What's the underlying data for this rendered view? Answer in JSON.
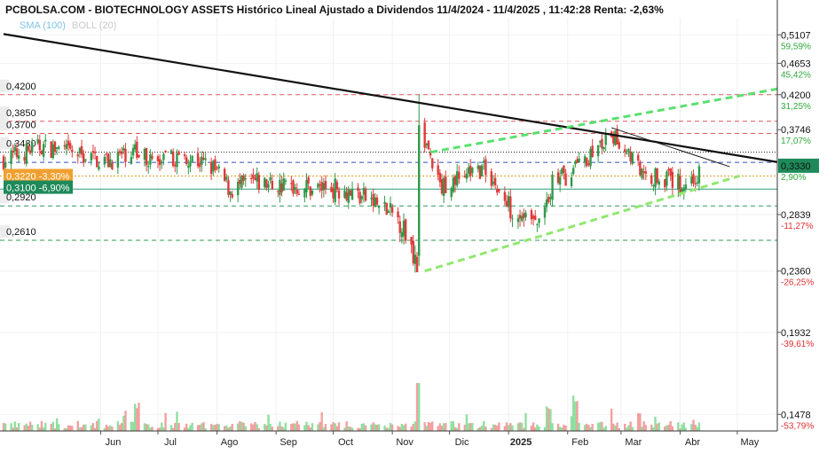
{
  "chart_data": {
    "type": "candlestick",
    "title": "PCBOLSA.COM - BIOTECHNOLOGY ASSETS Histórico Lineal Ajustado a Dividendos 11/4/2024 - 11/4/2025 , 11:42:28 Renta: -2,63%",
    "indicators": [
      "SMA (100)",
      "BOLL (20)"
    ],
    "y_scale": "log",
    "ylim": [
      0.14,
      0.54
    ],
    "grid": true,
    "right_axis": [
      {
        "price": "0,5107",
        "pct": "59,59%",
        "color": "#2eaa3a"
      },
      {
        "price": "0,4653",
        "pct": "45,42%",
        "color": "#2eaa3a"
      },
      {
        "price": "0,4200",
        "pct": "31,25%",
        "color": "#2eaa3a"
      },
      {
        "price": "0,3746",
        "pct": "17,07%",
        "color": "#2eaa3a"
      },
      {
        "price": "0,3330",
        "pct": "2,90%",
        "color": "#2eaa3a",
        "current": true
      },
      {
        "price": "0,2839",
        "pct": "-11,27%",
        "color": "#e03030"
      },
      {
        "price": "0,2360",
        "pct": "-26,25%",
        "color": "#e03030"
      },
      {
        "price": "0,1932",
        "pct": "-39,61%",
        "color": "#e03030"
      },
      {
        "price": "0,1478",
        "pct": "-53,79%",
        "color": "#e03030"
      }
    ],
    "hlines": [
      {
        "label": "0,4200",
        "value": 0.42,
        "color": "#e05a5a",
        "style": "dash"
      },
      {
        "label": "0,3850",
        "value": 0.385,
        "color": "#e05a5a",
        "style": "dash"
      },
      {
        "label": "0,3700",
        "value": 0.37,
        "color": "#e05a5a",
        "style": "dash"
      },
      {
        "label": "0,3480",
        "value": 0.348,
        "color": "#222222",
        "style": "dot"
      },
      {
        "label": "",
        "value": 0.3366,
        "color": "#3050c0",
        "style": "dash"
      },
      {
        "label": "0,2920",
        "value": 0.292,
        "color": "#2e9a5a",
        "style": "dash"
      },
      {
        "label": "0,2610",
        "value": 0.261,
        "color": "#2e9a5a",
        "style": "dash"
      }
    ],
    "badges": [
      {
        "label": "0,3220 -3,30%",
        "value": 0.322,
        "color": "#f0a030"
      },
      {
        "label": "0,3100 -6,90%",
        "value": 0.31,
        "color": "#1e8a5a"
      }
    ],
    "months": [
      "Jun",
      "Jul",
      "Ago",
      "Sep",
      "Oct",
      "Nov",
      "Dic",
      "2025",
      "Feb",
      "Mar",
      "Abr",
      "May"
    ],
    "trend_lines": [
      {
        "name": "",
        "color": "#111111",
        "style": "solid",
        "p1": [
          "2024-04-11",
          0.512
        ],
        "p2": [
          "2025-05-22",
          0.337
        ]
      },
      {
        "name": "",
        "color": "#111111",
        "style": "thin",
        "p1": [
          "2025-02-24",
          0.377
        ],
        "p2": [
          "2025-04-27",
          0.332
        ]
      },
      {
        "name": "",
        "color": "#5be070",
        "style": "dash",
        "p1": [
          "2024-11-21",
          0.348
        ],
        "p2": [
          "2025-05-22",
          0.428
        ]
      },
      {
        "name": "",
        "color": "#90e870",
        "style": "dash",
        "p1": [
          "2024-11-18",
          0.236
        ],
        "p2": [
          "2025-05-02",
          0.322
        ]
      }
    ],
    "close_anchors": [
      [
        "2024-04-11",
        0.34
      ],
      [
        "2024-05-01",
        0.355
      ],
      [
        "2024-05-20",
        0.345
      ],
      [
        "2024-06-05",
        0.338
      ],
      [
        "2024-06-18",
        0.35
      ],
      [
        "2024-07-01",
        0.335
      ],
      [
        "2024-07-15",
        0.345
      ],
      [
        "2024-07-30",
        0.33
      ],
      [
        "2024-08-08",
        0.308
      ],
      [
        "2024-08-20",
        0.315
      ],
      [
        "2024-09-05",
        0.312
      ],
      [
        "2024-09-20",
        0.31
      ],
      [
        "2024-10-05",
        0.31
      ],
      [
        "2024-10-20",
        0.298
      ],
      [
        "2024-11-05",
        0.278
      ],
      [
        "2024-11-14",
        0.245
      ],
      [
        "2024-11-15",
        0.385
      ],
      [
        "2024-11-20",
        0.348
      ],
      [
        "2024-11-26",
        0.31
      ],
      [
        "2024-12-10",
        0.325
      ],
      [
        "2024-12-20",
        0.33
      ],
      [
        "2024-12-30",
        0.295
      ],
      [
        "2025-01-10",
        0.282
      ],
      [
        "2025-01-16",
        0.273
      ],
      [
        "2025-01-24",
        0.315
      ],
      [
        "2025-02-05",
        0.327
      ],
      [
        "2025-02-15",
        0.35
      ],
      [
        "2025-02-25",
        0.365
      ],
      [
        "2025-03-05",
        0.35
      ],
      [
        "2025-03-13",
        0.32
      ],
      [
        "2025-03-22",
        0.323
      ],
      [
        "2025-04-01",
        0.313
      ],
      [
        "2025-04-11",
        0.322
      ]
    ],
    "volume_bars": 260,
    "volume_spikes": [
      [
        "2024-11-15",
        1.0
      ],
      [
        "2025-02-05",
        0.62
      ],
      [
        "2025-01-22",
        0.4
      ],
      [
        "2024-06-20",
        0.5
      ],
      [
        "2025-03-10",
        0.3
      ]
    ]
  }
}
